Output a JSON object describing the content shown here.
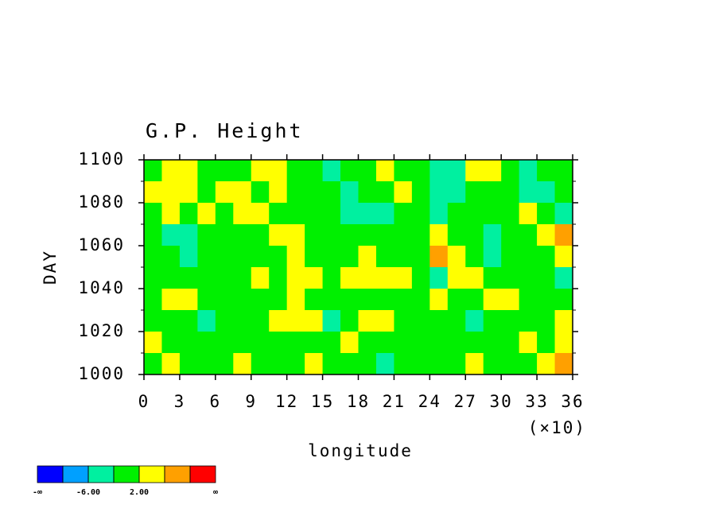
{
  "chart_data": {
    "type": "heatmap",
    "title": "G.P. Height",
    "xlabel": "longitude",
    "ylabel": "DAY",
    "x_multiplier_label": "(×10)",
    "xlim": [
      0,
      36
    ],
    "xticks": [
      0,
      3,
      6,
      9,
      12,
      15,
      18,
      21,
      24,
      27,
      30,
      33,
      36
    ],
    "ylim": [
      1000,
      1100
    ],
    "yticks": [
      1000,
      1020,
      1040,
      1060,
      1080,
      1100
    ],
    "yminorticks": [
      1010,
      1030,
      1050,
      1070,
      1090
    ],
    "x": [
      0.75,
      2.25,
      3.75,
      5.25,
      6.75,
      8.25,
      9.75,
      11.25,
      12.75,
      14.25,
      15.75,
      17.25,
      18.75,
      20.25,
      21.75,
      23.25,
      24.75,
      26.25,
      27.75,
      29.25,
      30.75,
      32.25,
      33.75,
      35.25
    ],
    "y": [
      1095,
      1085,
      1075,
      1065,
      1055,
      1045,
      1035,
      1025,
      1015,
      1005
    ],
    "z": [
      [
        1,
        4,
        3,
        1,
        -1,
        0,
        4,
        3,
        1,
        0,
        -3,
        -1,
        1,
        2,
        0,
        -1,
        -3,
        -3,
        3,
        4,
        -1,
        -3,
        -2,
        -1
      ],
      [
        3,
        4,
        2,
        -1,
        3,
        2,
        0,
        3,
        1,
        0,
        -1,
        -3,
        0,
        1,
        3,
        -1,
        -3,
        -4,
        -1,
        0,
        -1,
        -3,
        -3,
        -1
      ],
      [
        1,
        3,
        0,
        3,
        -1,
        4,
        3,
        1,
        -1,
        0,
        1,
        -3,
        -3,
        -3,
        -1,
        -1,
        -3,
        -1,
        0,
        1,
        -1,
        3,
        -1,
        -3
      ],
      [
        0,
        -3,
        -3,
        0,
        1,
        1,
        1,
        4,
        2,
        0,
        -1,
        0,
        -1,
        0,
        -1,
        -2,
        5,
        0,
        -1,
        -3,
        0,
        -1,
        3,
        7
      ],
      [
        1,
        -1,
        -3,
        1,
        -1,
        1,
        0,
        1,
        3,
        1,
        1,
        0,
        3,
        1,
        0,
        -1,
        8,
        3,
        0,
        -3,
        -1,
        -1,
        0,
        3
      ],
      [
        0,
        -1,
        0,
        0,
        0,
        1,
        3,
        1,
        3,
        4,
        1,
        3,
        3,
        4,
        3,
        0,
        -3,
        3,
        4,
        -1,
        0,
        -1,
        -1,
        -3
      ],
      [
        1,
        3,
        3,
        -1,
        0,
        1,
        0,
        1,
        3,
        -1,
        0,
        1,
        -1,
        0,
        1,
        0,
        3,
        1,
        0,
        4,
        3,
        0,
        -1,
        -1
      ],
      [
        0,
        1,
        -1,
        -4,
        1,
        0,
        0,
        3,
        3,
        4,
        -4,
        1,
        4,
        3,
        0,
        1,
        1,
        1,
        -3,
        -1,
        0,
        0,
        -1,
        4
      ],
      [
        3,
        1,
        -1,
        -1,
        0,
        -1,
        1,
        -1,
        1,
        1,
        -1,
        3,
        1,
        -1,
        0,
        1,
        0,
        -1,
        1,
        -1,
        0,
        3,
        1,
        4
      ],
      [
        1,
        3,
        0,
        -1,
        0,
        3,
        1,
        1,
        -1,
        3,
        1,
        0,
        -1,
        -3,
        1,
        0,
        -1,
        -1,
        3,
        1,
        0,
        -1,
        3,
        7
      ]
    ],
    "colorbar": {
      "levels": [
        -10,
        -6,
        -2,
        2,
        6,
        10
      ],
      "colors": [
        "#0000ff",
        "#00a0ff",
        "#00f0a0",
        "#00f000",
        "#ffff00",
        "#ffa000",
        "#ff0000"
      ],
      "labels": [
        {
          "value": -6,
          "label": "-6.00"
        },
        {
          "value": 2,
          "label": "2.00"
        }
      ],
      "low_label": "-∞",
      "high_label": "∞"
    }
  }
}
